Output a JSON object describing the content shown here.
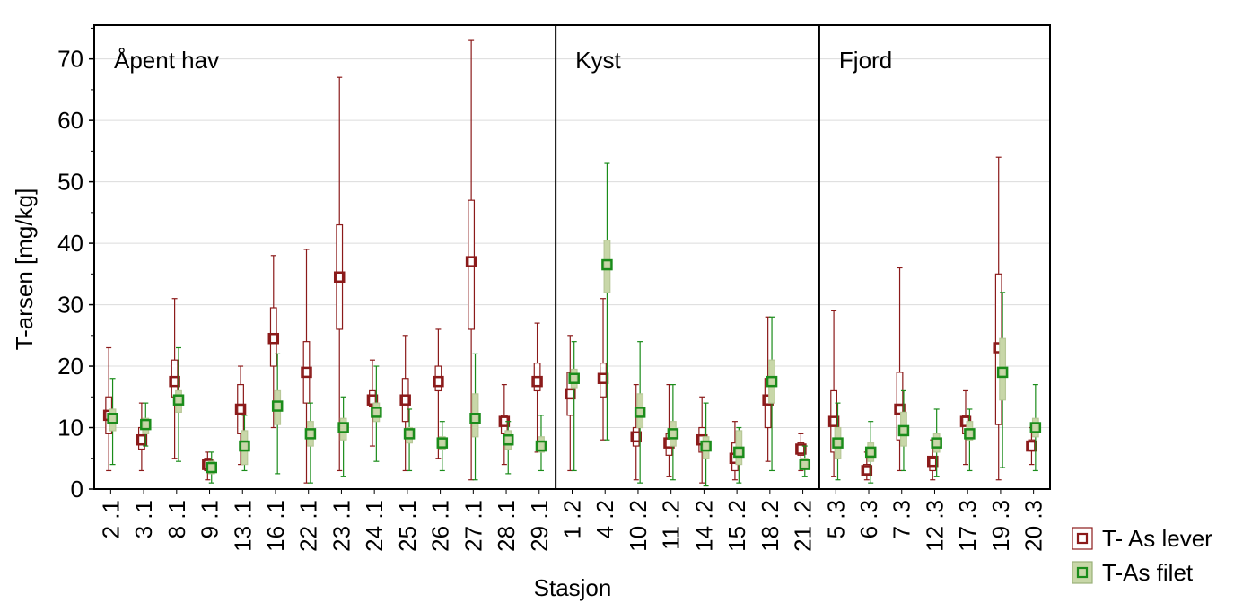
{
  "chart_data": {
    "type": "box",
    "title": "",
    "xlabel": "Stasjon",
    "ylabel": "T-arsen [mg/kg]",
    "ylim": [
      0,
      75
    ],
    "yticks": [
      0,
      10,
      20,
      30,
      40,
      50,
      60,
      70
    ],
    "grid": "horizontal",
    "legend_position": "bottom-right",
    "panel_labels": [
      "Åpent hav",
      "Kyst",
      "Fjord"
    ],
    "panel_sizes": [
      14,
      8,
      7
    ],
    "categories": [
      "2 .1",
      "3 .1",
      "8 .1",
      "9 .1",
      "13 .1",
      "16 .1",
      "22 .1",
      "23 .1",
      "24 .1",
      "25 .1",
      "26 .1",
      "27 .1",
      "28 .1",
      "29 .1",
      "1 .2",
      "4 .2",
      "10 .2",
      "11 .2",
      "14 .2",
      "15 .2",
      "18 .2",
      "21 .2",
      "5 .3",
      "6 .3",
      "7 .3",
      "12 .3",
      "17 .3",
      "19 .3",
      "20 .3"
    ],
    "series": [
      {
        "name": "T- As lever",
        "color": "#8b1a1a",
        "box_fill": "#ffffff",
        "mean": [
          12,
          8,
          17.5,
          4,
          13,
          24.5,
          19,
          34.5,
          14.5,
          14.5,
          17.5,
          37,
          11,
          17.5,
          15.5,
          18,
          8.5,
          7.5,
          8,
          5,
          14.5,
          6.5,
          11,
          3,
          13,
          4.5,
          11,
          23,
          7
        ],
        "q1": [
          9,
          6.5,
          15,
          3,
          9,
          20,
          14,
          26,
          13.5,
          11,
          16,
          26,
          9,
          16,
          12,
          15,
          7,
          5.5,
          6,
          3,
          10,
          5.5,
          6,
          2.5,
          8,
          3,
          9,
          10.5,
          6.2
        ],
        "q3": [
          15,
          10,
          21,
          5,
          17,
          29.5,
          24,
          43,
          16,
          18,
          20,
          47,
          12,
          20.5,
          19,
          20.5,
          10,
          9,
          10,
          7.5,
          18,
          7.5,
          16,
          4,
          19,
          5,
          12,
          35,
          8
        ],
        "min": [
          3,
          3,
          5,
          1.5,
          4,
          10,
          1,
          3,
          7,
          3,
          5,
          1.5,
          4,
          6,
          3,
          8,
          1.5,
          2,
          1,
          1.5,
          4.5,
          3,
          2,
          1.5,
          3,
          1.5,
          4,
          1.5,
          4
        ],
        "max": [
          23,
          14,
          31,
          6,
          20,
          38,
          39,
          67,
          21,
          25,
          26,
          73,
          17,
          27,
          25,
          31,
          17,
          17,
          15,
          11,
          28,
          9,
          29,
          6,
          36,
          8,
          16,
          54,
          10
        ]
      },
      {
        "name": "T-As filet",
        "color": "#1a8c1a",
        "box_fill": "#c8d7a8",
        "mean": [
          11.5,
          10.5,
          14.5,
          3.5,
          7,
          13.5,
          9,
          10,
          12.5,
          9,
          7.5,
          11.5,
          8,
          7,
          18,
          36.5,
          12.5,
          9,
          7,
          6,
          17.5,
          4,
          7.5,
          6,
          9.5,
          7.5,
          9,
          19,
          10
        ],
        "q1": [
          9.5,
          9,
          12.5,
          2.5,
          4,
          10.5,
          7,
          8,
          11,
          7.5,
          6.5,
          8.5,
          6.5,
          6,
          16.5,
          32,
          10,
          7,
          5,
          4,
          14,
          3.5,
          5,
          4.5,
          7,
          6,
          8,
          14.5,
          8.5
        ],
        "q3": [
          13,
          11.5,
          16,
          4.5,
          9.5,
          16,
          11,
          11.5,
          14,
          10,
          8.5,
          15.5,
          9.5,
          8.5,
          19.5,
          40.5,
          15.5,
          11,
          8.5,
          9.5,
          21,
          5,
          10,
          7.5,
          12.5,
          9,
          11,
          24.5,
          11.5
        ],
        "min": [
          4,
          7,
          4.5,
          1,
          3,
          2.5,
          1,
          2,
          4.5,
          3,
          3,
          1.5,
          2.5,
          3,
          3,
          8,
          1,
          1.5,
          0.5,
          1,
          3,
          2,
          1.5,
          1,
          3,
          2,
          3,
          3.5,
          3
        ],
        "max": [
          18,
          14,
          23,
          6,
          12,
          22,
          14,
          15,
          20,
          13,
          11,
          22,
          11,
          12,
          24,
          53,
          24,
          17,
          14,
          10,
          28,
          7,
          14,
          11,
          16,
          13,
          13,
          32,
          17
        ]
      }
    ]
  }
}
